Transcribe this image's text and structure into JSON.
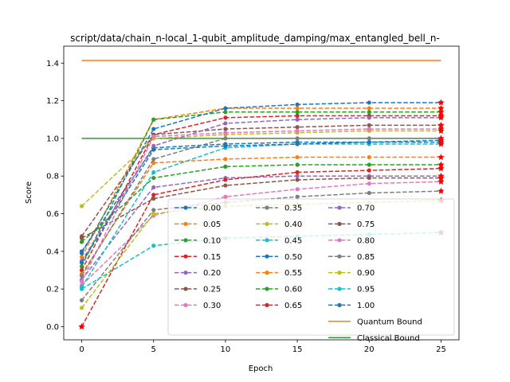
{
  "chart_data": {
    "type": "line",
    "title": "script/data/chain_n-local_1-qubit_amplitude_damping/max_entangled_bell_n-",
    "xlabel": "Epoch",
    "ylabel": "Score",
    "xlim": [
      -1.25,
      26.25
    ],
    "ylim": [
      -0.07,
      1.49
    ],
    "x_ticks": [
      0,
      5,
      10,
      15,
      20,
      25
    ],
    "y_ticks": [
      0.0,
      0.2,
      0.4,
      0.6,
      0.8,
      1.0,
      1.2,
      1.4
    ],
    "x_tick_labels": [
      "0",
      "5",
      "10",
      "15",
      "20",
      "25"
    ],
    "y_tick_labels": [
      "0.0",
      "0.2",
      "0.4",
      "0.6",
      "0.8",
      "1.0",
      "1.2",
      "1.4"
    ],
    "grid": false,
    "legend_position": "lower-right",
    "legend_columns": 3,
    "x": [
      0,
      5,
      10,
      15,
      20,
      25
    ],
    "series": [
      {
        "name": "0.00",
        "color": "#1f77b4",
        "values": [
          0.4,
          0.95,
          0.97,
          0.98,
          0.98,
          0.98
        ]
      },
      {
        "name": "0.05",
        "color": "#ff7f0e",
        "values": [
          0.37,
          1.1,
          1.16,
          1.16,
          1.16,
          1.16
        ]
      },
      {
        "name": "0.10",
        "color": "#2ca02c",
        "values": [
          0.32,
          1.1,
          1.14,
          1.14,
          1.14,
          1.14
        ]
      },
      {
        "name": "0.15",
        "color": "#d62728",
        "values": [
          0.3,
          1.02,
          1.11,
          1.12,
          1.12,
          1.12
        ]
      },
      {
        "name": "0.20",
        "color": "#9467bd",
        "values": [
          0.25,
          0.74,
          0.79,
          0.8,
          0.8,
          0.8
        ]
      },
      {
        "name": "0.25",
        "color": "#8c564b",
        "values": [
          0.48,
          1.02,
          1.05,
          1.06,
          1.07,
          1.07
        ]
      },
      {
        "name": "0.30",
        "color": "#e377c2",
        "values": [
          0.22,
          0.59,
          0.69,
          0.73,
          0.76,
          0.77
        ]
      },
      {
        "name": "0.35",
        "color": "#7f7f7f",
        "values": [
          0.14,
          0.62,
          0.66,
          0.69,
          0.71,
          0.72
        ]
      },
      {
        "name": "0.40",
        "color": "#bcbd22",
        "values": [
          0.64,
          1.0,
          1.02,
          1.03,
          1.04,
          1.04
        ]
      },
      {
        "name": "0.45",
        "color": "#17becf",
        "values": [
          0.2,
          0.43,
          0.47,
          0.48,
          0.49,
          0.5
        ]
      },
      {
        "name": "0.50",
        "color": "#1f77b4",
        "values": [
          0.39,
          1.05,
          1.16,
          1.18,
          1.19,
          1.19
        ]
      },
      {
        "name": "0.55",
        "color": "#ff7f0e",
        "values": [
          0.28,
          0.87,
          0.89,
          0.9,
          0.9,
          0.9
        ]
      },
      {
        "name": "0.60",
        "color": "#2ca02c",
        "values": [
          0.45,
          0.79,
          0.85,
          0.86,
          0.86,
          0.86
        ]
      },
      {
        "name": "0.65",
        "color": "#d62728",
        "values": [
          0.0,
          0.7,
          0.78,
          0.82,
          0.83,
          0.84
        ]
      },
      {
        "name": "0.70",
        "color": "#9467bd",
        "values": [
          0.35,
          0.96,
          1.08,
          1.1,
          1.11,
          1.11
        ]
      },
      {
        "name": "0.75",
        "color": "#8c564b",
        "values": [
          0.47,
          0.68,
          0.75,
          0.78,
          0.79,
          0.79
        ]
      },
      {
        "name": "0.80",
        "color": "#e377c2",
        "values": [
          0.24,
          1.01,
          1.03,
          1.04,
          1.05,
          1.05
        ]
      },
      {
        "name": "0.85",
        "color": "#7f7f7f",
        "values": [
          0.27,
          0.89,
          1.0,
          1.0,
          1.0,
          1.0
        ]
      },
      {
        "name": "0.90",
        "color": "#bcbd22",
        "values": [
          0.1,
          0.6,
          0.64,
          0.65,
          0.66,
          0.67
        ]
      },
      {
        "name": "0.95",
        "color": "#17becf",
        "values": [
          0.21,
          0.82,
          0.95,
          0.97,
          0.97,
          0.97
        ]
      },
      {
        "name": "1.00",
        "color": "#1f77b4",
        "values": [
          0.34,
          0.94,
          0.96,
          0.97,
          0.98,
          0.99
        ]
      }
    ],
    "reference_lines": [
      {
        "name": "Quantum Bound",
        "color": "#ff7f0e",
        "value": 1.414
      },
      {
        "name": "Classical Bound",
        "color": "#2ca02c",
        "value": 1.0
      }
    ],
    "marker_color": "#ff0000"
  }
}
